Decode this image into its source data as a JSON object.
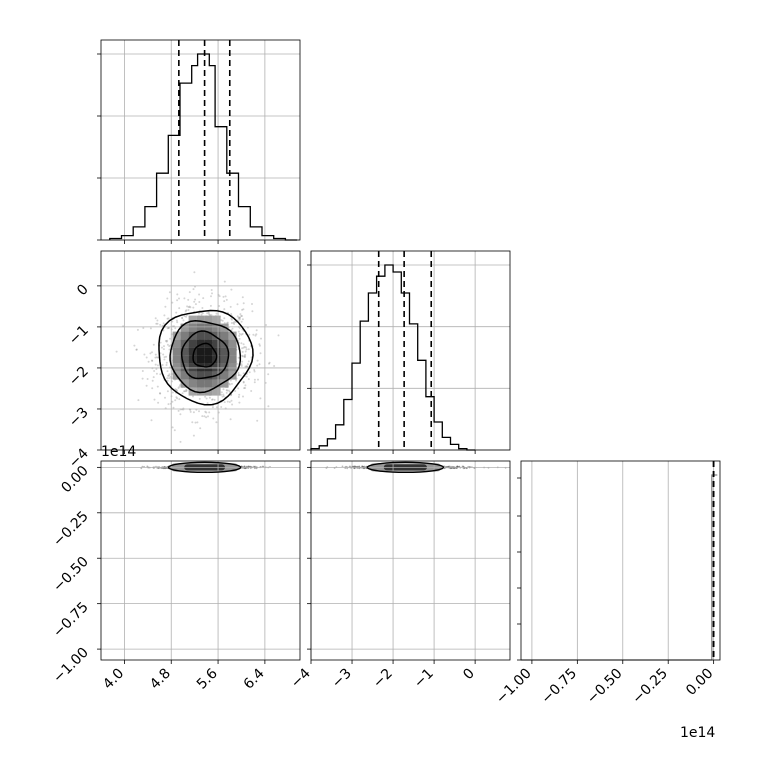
{
  "chart_data": {
    "type": "corner",
    "parameters": [
      "",
      "",
      ""
    ],
    "quantile_lines": "dashed at 16th, 50th and 84th percentiles",
    "grid": true,
    "offset_labels": {
      "y_row3": "1e14",
      "x_col3": "1e14"
    },
    "axes": {
      "p1": {
        "range": [
          3.6,
          7.0
        ],
        "ticks": [
          4.0,
          4.8,
          5.6,
          6.4
        ],
        "tick_labels": [
          "4.0",
          "4.8",
          "5.6",
          "6.4"
        ],
        "quantiles": [
          4.93,
          5.37,
          5.8
        ]
      },
      "p2": {
        "range": [
          -4.0,
          0.85
        ],
        "ticks": [
          -4,
          -3,
          -2,
          -1,
          0
        ],
        "tick_labels": [
          "−4",
          "−3",
          "−2",
          "−1",
          "0"
        ],
        "quantiles": [
          -2.35,
          -1.73,
          -1.07
        ]
      },
      "p3": {
        "range": [
          -1.06,
          0.035
        ],
        "ticks": [
          -1.0,
          -0.75,
          -0.5,
          -0.25,
          0.0
        ],
        "tick_labels": [
          "−1.00",
          "−0.75",
          "−0.50",
          "−0.25",
          "0.00"
        ],
        "quantiles": [
          0.0,
          0.0,
          0.0
        ]
      }
    },
    "histograms": {
      "p1": {
        "bin_edges": [
          3.75,
          3.95,
          4.15,
          4.35,
          4.55,
          4.75,
          4.95,
          5.15,
          5.25,
          5.35,
          5.45,
          5.55,
          5.75,
          5.95,
          6.15,
          6.35,
          6.55,
          6.75,
          6.95
        ],
        "counts": [
          1,
          3,
          9,
          23,
          46,
          72,
          108,
          120,
          128,
          128,
          120,
          78,
          46,
          23,
          9,
          3,
          1,
          0
        ]
      },
      "p2": {
        "bin_edges": [
          -4.0,
          -3.8,
          -3.6,
          -3.4,
          -3.2,
          -3.0,
          -2.8,
          -2.6,
          -2.4,
          -2.2,
          -2.0,
          -1.8,
          -1.6,
          -1.4,
          -1.2,
          -1.0,
          -0.8,
          -0.6,
          -0.4,
          -0.2,
          0.0
        ],
        "counts": [
          1,
          3,
          8,
          18,
          36,
          62,
          92,
          112,
          124,
          132,
          127,
          112,
          90,
          64,
          38,
          20,
          9,
          4,
          1,
          0
        ]
      },
      "p3": {
        "bin_edges": [
          -1.06,
          -0.01,
          0.02
        ],
        "counts": [
          0,
          1
        ]
      }
    },
    "scatter_2d": {
      "p2_vs_p1": {
        "center": [
          5.37,
          -1.7
        ],
        "sd": [
          0.4,
          0.62
        ],
        "contours": "4 nested levels"
      },
      "p3_vs_p1": {
        "center": [
          5.37,
          0.0
        ],
        "note": "samples collapsed near 0"
      },
      "p3_vs_p2": {
        "center": [
          -1.7,
          0.0
        ],
        "note": "samples collapsed near 0"
      }
    }
  }
}
